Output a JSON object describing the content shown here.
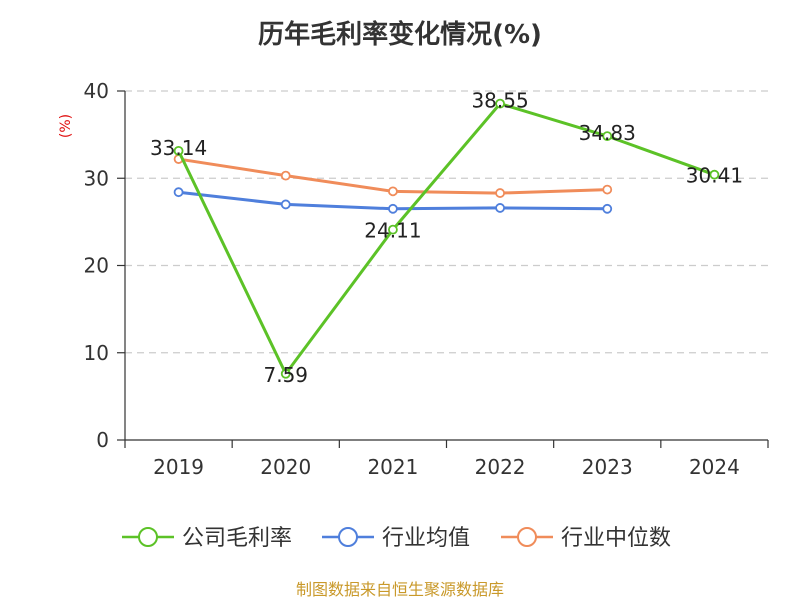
{
  "title": "历年毛利率变化情况(%)",
  "footer": "制图数据来自恒生聚源数据库",
  "colors": {
    "company": "#5cc227",
    "industry_avg": "#4f7fdc",
    "industry_median": "#f08c5a",
    "axis": "#333333",
    "grid": "#cccccc",
    "ylabel": "#e01010",
    "footer": "#c9992a"
  },
  "chart_data": {
    "type": "line",
    "title": "历年毛利率变化情况(%)",
    "xlabel": "",
    "ylabel": "(%)",
    "categories": [
      "2019",
      "2020",
      "2021",
      "2022",
      "2023",
      "2024"
    ],
    "ylim": [
      0,
      40
    ],
    "yticks": [
      0,
      10,
      20,
      30,
      40
    ],
    "grid": "horizontal dashed",
    "legend_position": "bottom",
    "series": [
      {
        "name": "公司毛利率",
        "color": "#5cc227",
        "values": [
          33.14,
          7.59,
          24.11,
          38.55,
          34.83,
          30.41
        ],
        "labels": [
          "33.14",
          "7.59",
          "24.11",
          "38.55",
          "34.83",
          "30.41"
        ]
      },
      {
        "name": "行业均值",
        "color": "#4f7fdc",
        "values": [
          28.4,
          27.0,
          26.5,
          26.6,
          26.5,
          null
        ]
      },
      {
        "name": "行业中位数",
        "color": "#f08c5a",
        "values": [
          32.2,
          30.3,
          28.5,
          28.3,
          28.7,
          null
        ]
      }
    ]
  }
}
